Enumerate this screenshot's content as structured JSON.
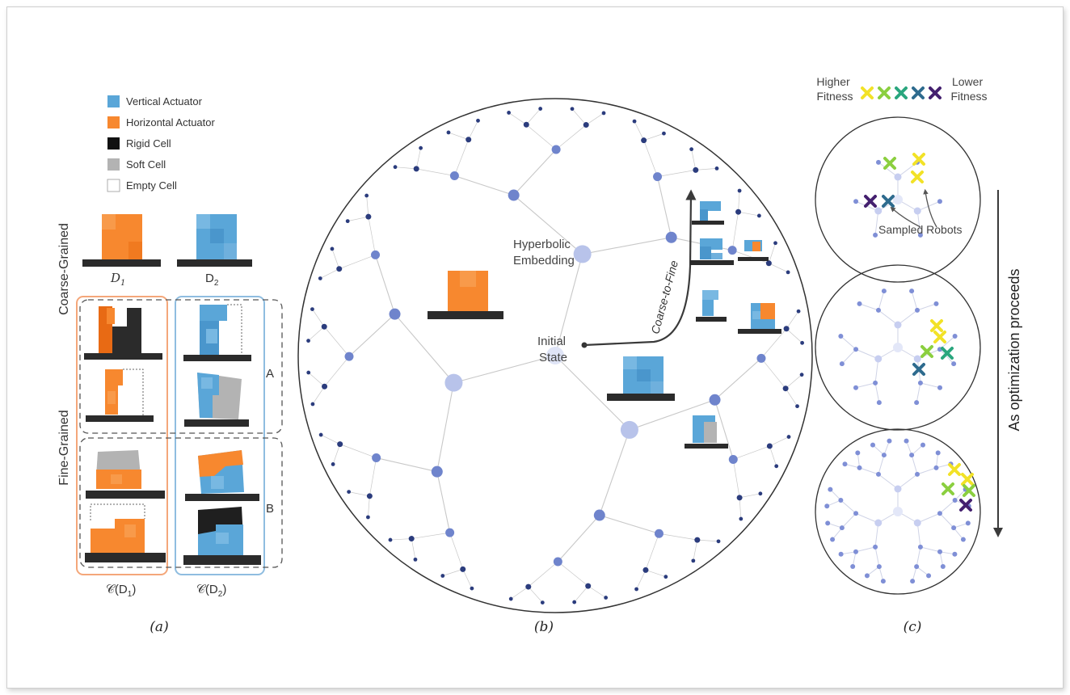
{
  "legend": {
    "vertical": "Vertical Actuator",
    "horizontal": "Horizontal Actuator",
    "rigid": "Rigid Cell",
    "soft": "Soft Cell",
    "empty": "Empty Cell"
  },
  "panel_a": {
    "coarse_label": "Coarse-Grained",
    "fine_label": "Fine-Grained",
    "d1": "D",
    "d1_sub": "1",
    "d2": "D",
    "d2_sub": "2",
    "c_d1": "𝒞(D",
    "c_d1_sub": "1",
    "c_d1_close": ")",
    "c_d2": "𝒞(D",
    "c_d2_sub": "2",
    "c_d2_close": ")",
    "group_a": "A",
    "group_b": "B",
    "caption": "(a)"
  },
  "panel_b": {
    "hyperbolic_line1": "Hyperbolic",
    "hyperbolic_line2": "Embedding",
    "initial_line1": "Initial",
    "initial_line2": "State",
    "coarse_to_fine": "Coarse-to-Fine",
    "caption": "(b)"
  },
  "panel_c": {
    "higher_line1": "Higher",
    "higher_line2": "Fitness",
    "lower_line1": "Lower",
    "lower_line2": "Fitness",
    "sampled": "Sampled Robots",
    "proceeds": "As optimization proceeds",
    "caption": "(c)"
  },
  "colors": {
    "actuator_blue": "#5aa6d8",
    "actuator_orange": "#f7882f",
    "rigid": "#222222",
    "soft": "#b3b3b3",
    "node_light": "#b8c3ea",
    "node_mid": "#6f84cc",
    "node_dark": "#2b3c7d",
    "fitness": [
      "#f2e227",
      "#8bcf3f",
      "#2aa67e",
      "#2e6b8e",
      "#44206f"
    ]
  }
}
